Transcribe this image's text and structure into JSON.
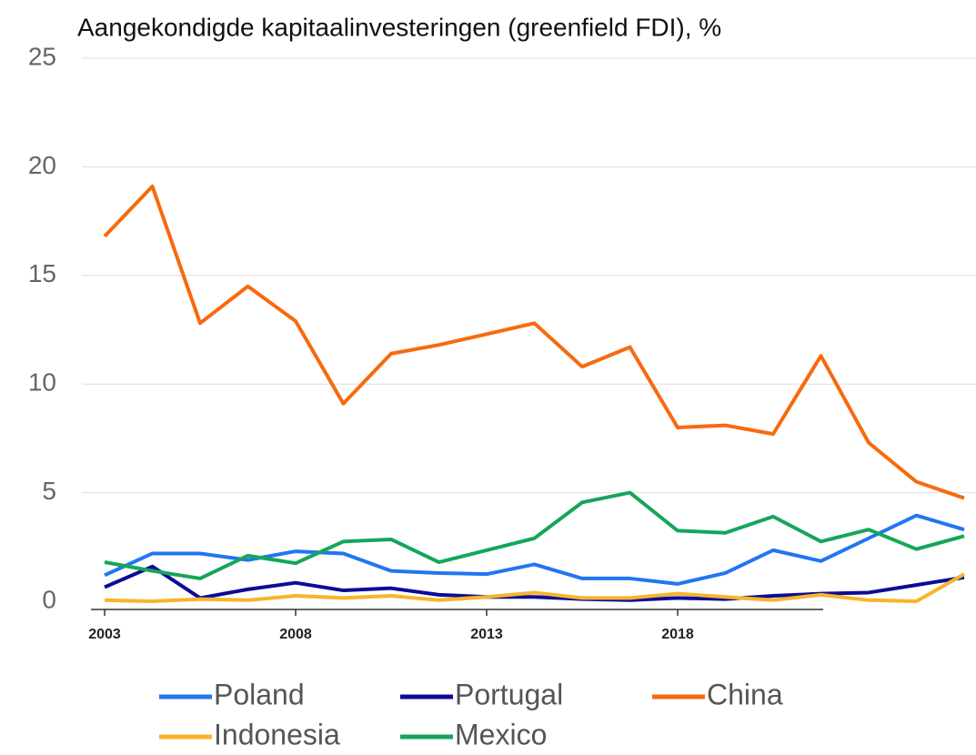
{
  "chart_data": {
    "type": "line",
    "title": "Aangekondigde kapitaalinvesteringen (greenfield FDI), %",
    "categories": [
      "2003",
      null,
      null,
      null,
      "2008",
      null,
      null,
      null,
      "2013",
      null,
      null,
      null,
      "2018",
      null,
      null,
      null,
      null,
      null,
      null
    ],
    "ylim": [
      0,
      25
    ],
    "yticks": [
      0,
      5,
      10,
      15,
      20,
      25
    ],
    "grid": true,
    "series": [
      {
        "name": "Poland",
        "color": "#2176f2",
        "values": [
          1.2,
          2.2,
          2.2,
          1.9,
          2.3,
          2.2,
          1.4,
          1.3,
          1.25,
          1.7,
          1.05,
          1.05,
          0.8,
          1.3,
          2.35,
          1.85,
          2.9,
          3.95,
          3.3
        ]
      },
      {
        "name": "Portugal",
        "color": "#0c0c96",
        "values": [
          0.65,
          1.6,
          0.15,
          0.55,
          0.85,
          0.5,
          0.6,
          0.3,
          0.2,
          0.2,
          0.1,
          0.05,
          0.15,
          0.1,
          0.25,
          0.35,
          0.4,
          0.75,
          1.1
        ]
      },
      {
        "name": "China",
        "color": "#f76a0e",
        "values": [
          16.8,
          19.1,
          12.8,
          14.5,
          12.9,
          9.1,
          11.4,
          11.8,
          12.3,
          12.8,
          10.8,
          11.7,
          8.0,
          8.1,
          7.7,
          11.3,
          7.3,
          5.5,
          4.75
        ]
      },
      {
        "name": "Indonesia",
        "color": "#f8b42c",
        "values": [
          0.05,
          0.0,
          0.1,
          0.05,
          0.25,
          0.15,
          0.25,
          0.05,
          0.2,
          0.4,
          0.15,
          0.15,
          0.35,
          0.2,
          0.05,
          0.3,
          0.05,
          0.0,
          1.25
        ]
      },
      {
        "name": "Mexico",
        "color": "#14a65a",
        "values": [
          1.8,
          1.4,
          1.05,
          2.1,
          1.75,
          2.75,
          2.85,
          1.8,
          2.35,
          2.9,
          4.55,
          5.0,
          3.25,
          3.15,
          3.9,
          2.75,
          3.3,
          2.4,
          3.0
        ]
      }
    ]
  }
}
